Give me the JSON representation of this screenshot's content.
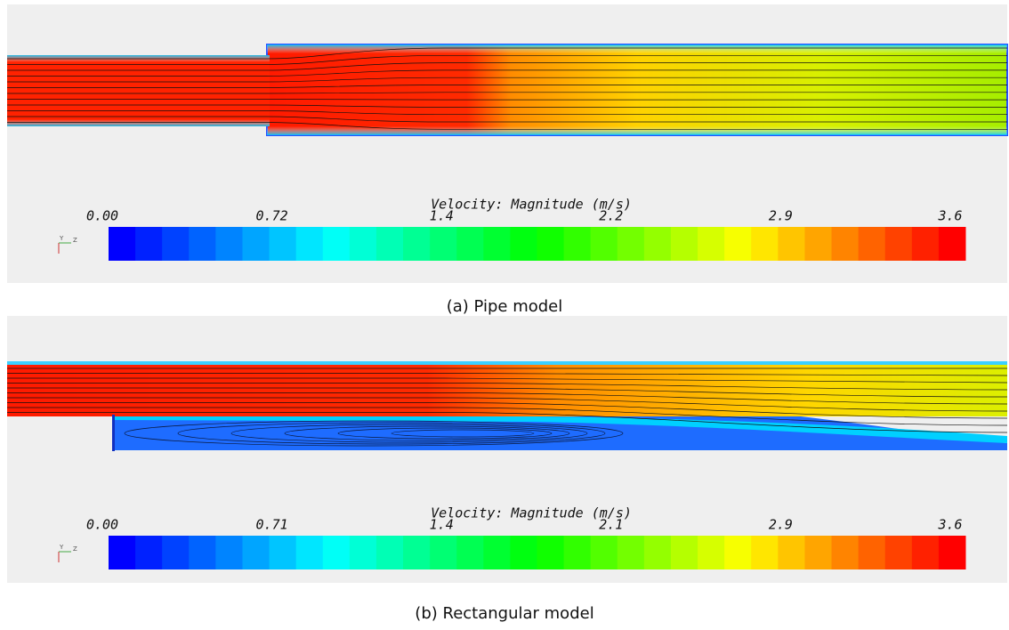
{
  "panels": [
    {
      "colorbar": {
        "title": "Velocity: Magnitude (m/s)",
        "labels": [
          "0.00",
          "0.72",
          "1.4",
          "2.2",
          "2.9",
          "3.6"
        ]
      },
      "triad": [
        "Y",
        "Z"
      ],
      "caption": "(a) Pipe model"
    },
    {
      "colorbar": {
        "title": "Velocity: Magnitude (m/s)",
        "labels": [
          "0.00",
          "0.71",
          "1.4",
          "2.1",
          "2.9",
          "3.6"
        ]
      },
      "triad": [
        "Y",
        "Z"
      ],
      "caption": "(b) Rectangular model"
    }
  ]
}
